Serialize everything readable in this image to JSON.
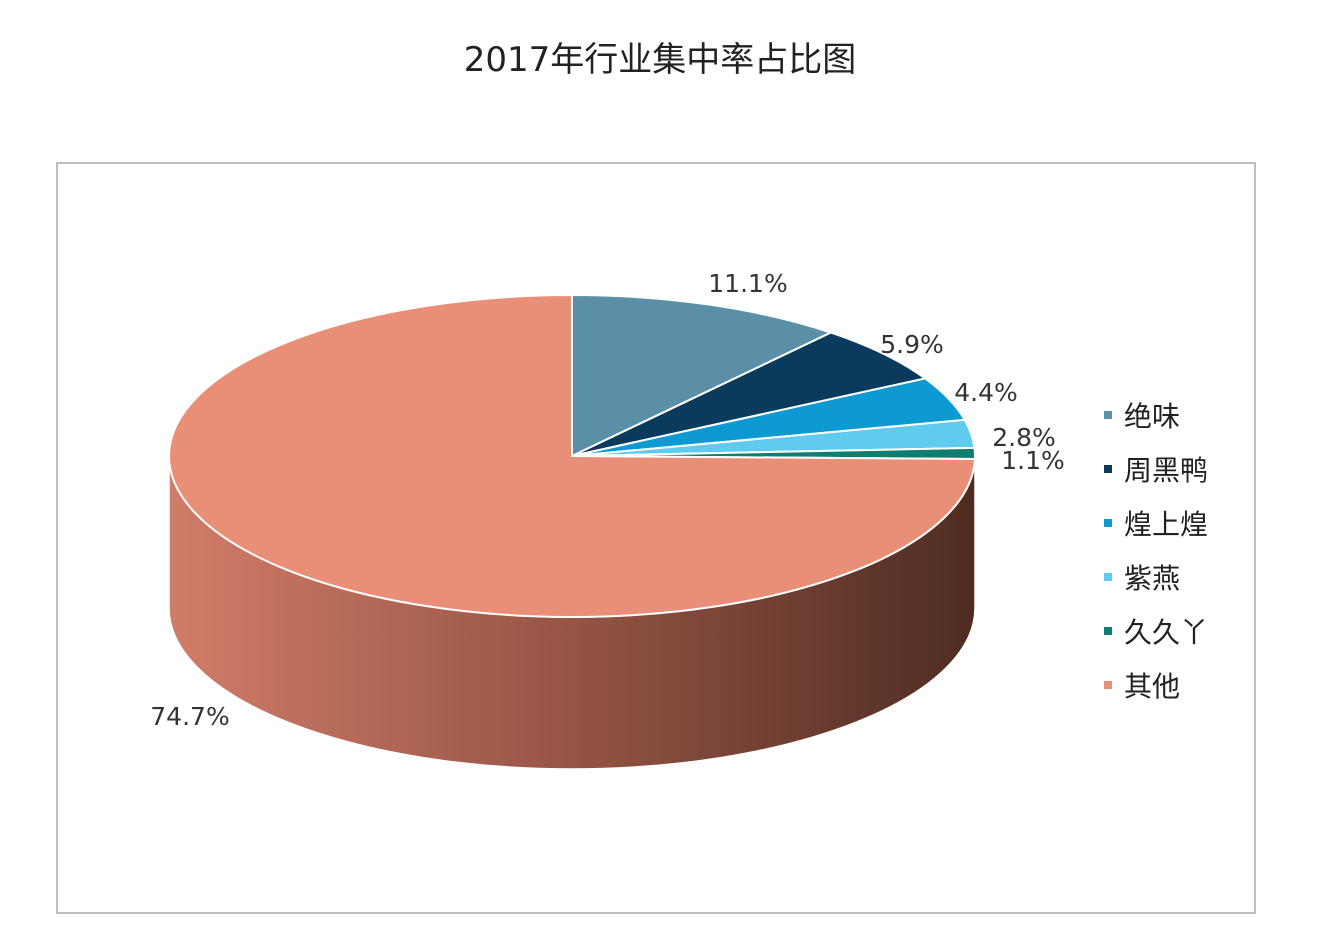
{
  "chart_data": {
    "type": "pie",
    "title": "2017年行业集中率占比图",
    "legend_position": "right",
    "series": [
      {
        "name": "绝味",
        "value": 11.1,
        "label": "11.1%",
        "color": "#5b8fa8"
      },
      {
        "name": "周黑鸭",
        "value": 5.9,
        "label": "5.9%",
        "color": "#0b3b5c"
      },
      {
        "name": "煌上煌",
        "value": 4.4,
        "label": "4.4%",
        "color": "#0d9ad3"
      },
      {
        "name": "紫燕",
        "value": 2.8,
        "label": "2.8%",
        "color": "#5fcbef"
      },
      {
        "name": "久久丫",
        "value": 1.1,
        "label": "1.1%",
        "color": "#0e7f6e"
      },
      {
        "name": "其他",
        "value": 74.7,
        "label": "74.7%",
        "color": "#e98f78"
      }
    ]
  }
}
